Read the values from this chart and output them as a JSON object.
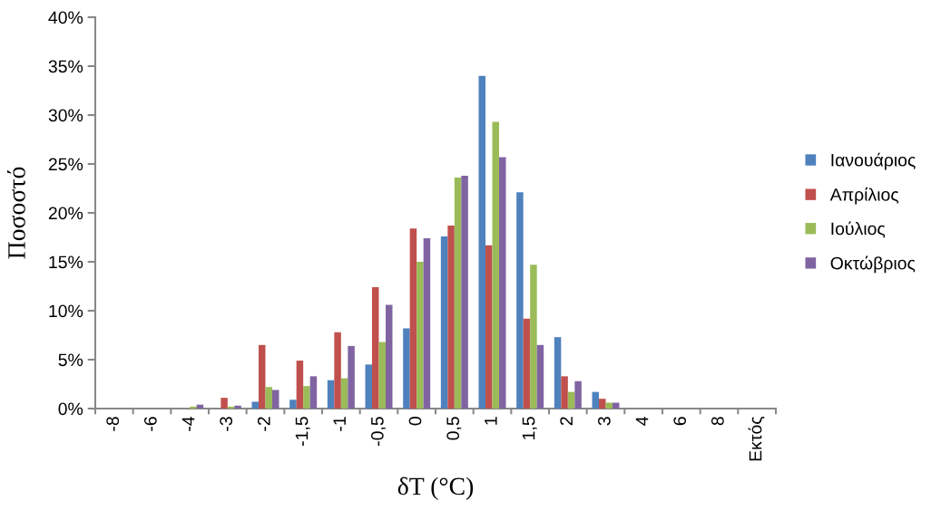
{
  "chart_data": {
    "type": "bar",
    "xlabel": "δT (°C)",
    "ylabel": "Ποσοστό",
    "categories": [
      "-8",
      "-6",
      "-4",
      "-3",
      "-2",
      "-1,5",
      "-1",
      "-0,5",
      "0",
      "0,5",
      "1",
      "1,5",
      "2",
      "3",
      "4",
      "6",
      "8",
      "Εκτός"
    ],
    "series": [
      {
        "name": "Ιανουάριος",
        "color": "#4f81bd",
        "values": [
          0,
          0,
          0,
          0,
          0.7,
          0.9,
          2.9,
          4.5,
          8.2,
          17.6,
          34.0,
          22.1,
          7.3,
          1.7,
          0,
          0,
          0,
          0
        ]
      },
      {
        "name": "Απρίλιος",
        "color": "#c0504d",
        "values": [
          0,
          0,
          0,
          1.1,
          6.5,
          4.9,
          7.8,
          12.4,
          18.4,
          18.7,
          16.7,
          9.2,
          3.3,
          1.0,
          0,
          0,
          0,
          0
        ]
      },
      {
        "name": "Ιούλιος",
        "color": "#9bbb59",
        "values": [
          0,
          0,
          0.2,
          0.2,
          2.2,
          2.3,
          3.1,
          6.8,
          15.0,
          23.6,
          29.3,
          14.7,
          1.7,
          0.6,
          0,
          0,
          0,
          0
        ]
      },
      {
        "name": "Οκτώβριος",
        "color": "#8064a2",
        "values": [
          0,
          0,
          0.4,
          0.3,
          1.9,
          3.3,
          6.4,
          10.6,
          17.4,
          23.8,
          25.7,
          6.5,
          2.8,
          0.6,
          0,
          0,
          0,
          0
        ]
      }
    ],
    "ylim": [
      0,
      40
    ],
    "yticks": [
      {
        "value": 0,
        "label": "0%"
      },
      {
        "value": 5,
        "label": "5%"
      },
      {
        "value": 10,
        "label": "10%"
      },
      {
        "value": 15,
        "label": "15%"
      },
      {
        "value": 20,
        "label": "20%"
      },
      {
        "value": 25,
        "label": "25%"
      },
      {
        "value": 30,
        "label": "30%"
      },
      {
        "value": 35,
        "label": "35%"
      },
      {
        "value": 40,
        "label": "40%"
      }
    ],
    "grid": false,
    "legend": "right"
  }
}
